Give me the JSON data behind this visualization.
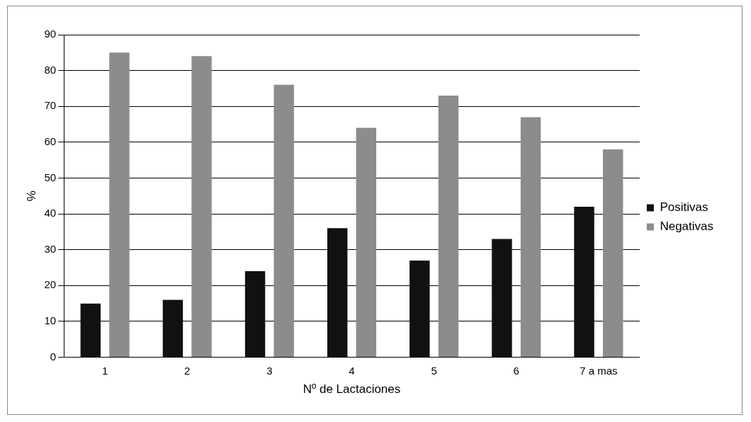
{
  "chart_data": {
    "type": "bar",
    "categories": [
      "1",
      "2",
      "3",
      "4",
      "5",
      "6",
      "7 a mas"
    ],
    "series": [
      {
        "name": "Positivas",
        "color": "#111111",
        "values": [
          15,
          16,
          24,
          36,
          27,
          33,
          42
        ]
      },
      {
        "name": "Negativas",
        "color": "#8c8c8c",
        "values": [
          85,
          84,
          76,
          64,
          73,
          67,
          58
        ]
      }
    ],
    "xlabel": "Nº de Lactaciones",
    "ylabel": "%",
    "ylim": [
      0,
      90
    ],
    "yticks": [
      0,
      10,
      20,
      30,
      40,
      50,
      60,
      70,
      80,
      90
    ],
    "grid": "y",
    "legend": "right"
  }
}
